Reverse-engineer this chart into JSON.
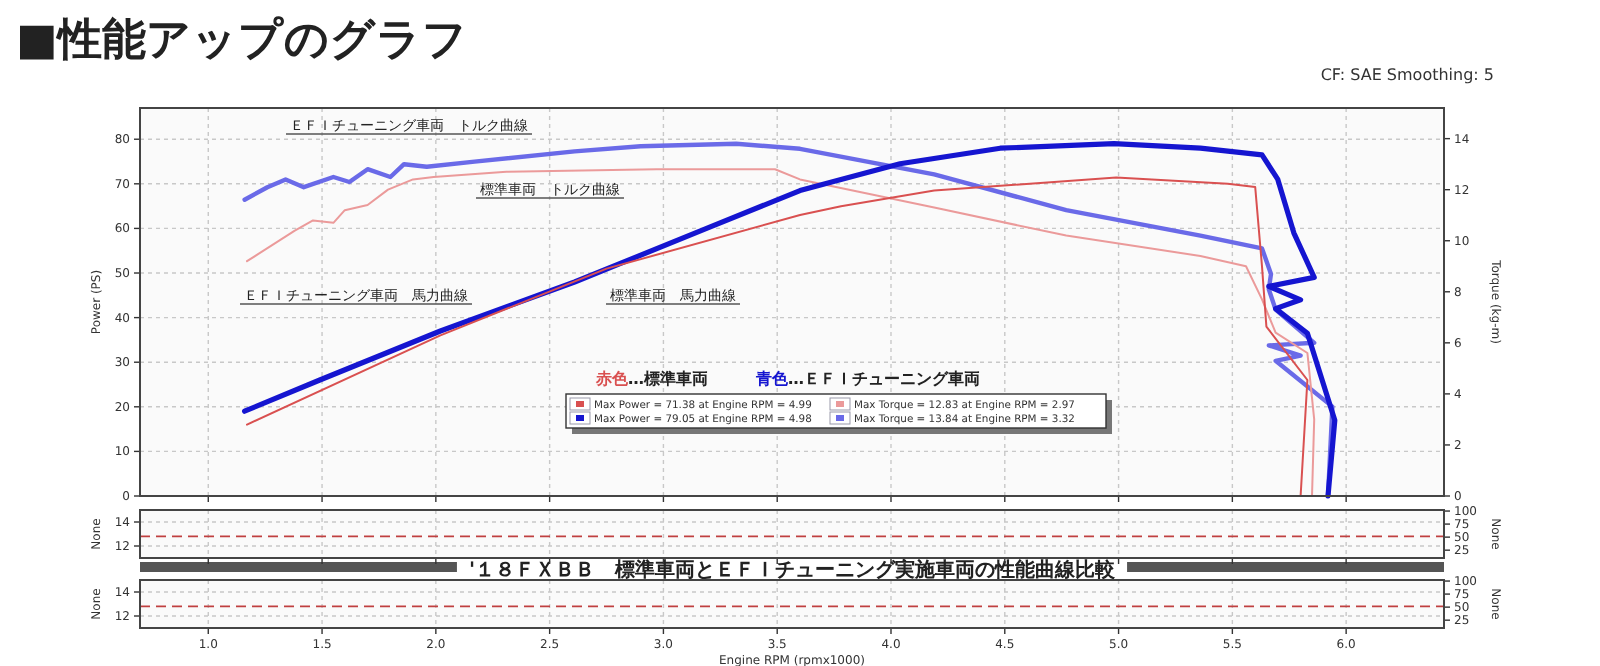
{
  "chart_data": [
    {
      "type": "line",
      "title": "■性能アップのグラフ",
      "ylabel": "Power (PS)",
      "y2label": "Torque (kg-m)",
      "annotations": [
        "CF: SAE Smoothing: 5",
        "赤色…標準車両",
        "青色…ＥＦＩチューニング車両",
        "Max Power = 71.38 at Engine RPM = 4.99",
        "Max Torque = 12.83 at Engine RPM = 2.97",
        "Max Power = 79.05 at Engine RPM = 4.98",
        "Max Torque = 13.84 at Engine RPM = 3.32",
        "'１８ＦＸＢＢ　標準車両とＥＦＩチューニング実施車両の性能曲線比較"
      ],
      "xlim": [
        0.7,
        6.43
      ],
      "xticks": [
        1,
        1.5,
        2,
        2.5,
        3,
        3.5,
        4,
        4.5,
        5,
        5.5,
        6
      ],
      "ylim": [
        0,
        87
      ],
      "yticks": [
        0,
        10,
        20,
        30,
        40,
        50,
        60,
        70,
        80
      ],
      "y2lim": [
        0,
        15.2
      ],
      "y2ticks": [
        0,
        2,
        4,
        6,
        8,
        10,
        12,
        14
      ],
      "grid": true,
      "tick_labels": "y",
      "series": [
        {
          "name": "ＥＦＩチューニング車両　トルク曲線",
          "color": "#6a6ae8",
          "axis": "y2",
          "x": [
            1.16,
            1.26,
            1.34,
            1.42,
            1.55,
            1.62,
            1.7,
            1.8,
            1.86,
            1.96,
            2.17,
            2.61,
            2.9,
            3.32,
            3.6,
            4.19,
            4.77,
            5.36,
            5.63,
            5.67,
            5.66,
            5.69,
            5.86,
            5.66,
            5.8,
            5.69,
            5.94,
            5.92
          ],
          "values": [
            11.6,
            12.1,
            12.4,
            12.1,
            12.5,
            12.3,
            12.8,
            12.5,
            13.0,
            12.9,
            13.1,
            13.5,
            13.7,
            13.8,
            13.6,
            12.6,
            11.2,
            10.2,
            9.7,
            8.7,
            8.1,
            7.3,
            6.0,
            5.9,
            5.5,
            5.3,
            3.5,
            0
          ]
        },
        {
          "name": "標準車両　トルク曲線",
          "color": "#eb9a9a",
          "axis": "y2",
          "x": [
            1.17,
            1.38,
            1.46,
            1.55,
            1.6,
            1.7,
            1.79,
            1.9,
            1.99,
            2.31,
            2.97,
            3.49,
            3.6,
            4.19,
            4.77,
            5.36,
            5.56,
            5.63,
            5.69,
            5.83,
            5.86,
            5.85
          ],
          "values": [
            9.2,
            10.4,
            10.8,
            10.7,
            11.2,
            11.4,
            12.0,
            12.4,
            12.5,
            12.7,
            12.8,
            12.8,
            12.4,
            11.3,
            10.2,
            9.4,
            9.0,
            7.7,
            6.4,
            5.6,
            3.0,
            0
          ]
        },
        {
          "name": "ＥＦＩチューニング車両　馬力曲線",
          "color": "#1515d0",
          "x": [
            1.16,
            1.49,
            2.02,
            2.61,
            3.19,
            3.6,
            3.78,
            4.04,
            4.48,
            4.98,
            5.36,
            5.63,
            5.7,
            5.77,
            5.86,
            5.66,
            5.8,
            5.69,
            5.83,
            5.95,
            5.92
          ],
          "values": [
            19,
            26,
            37,
            48,
            60,
            68.5,
            71,
            74.5,
            78,
            79,
            78,
            76.5,
            71,
            59,
            49,
            47,
            44,
            42,
            36.5,
            17,
            0
          ]
        },
        {
          "name": "標準車両　馬力曲線",
          "color": "#d95050",
          "x": [
            1.17,
            2.02,
            2.75,
            3.6,
            3.78,
            4.19,
            4.99,
            5.48,
            5.6,
            5.63,
            5.65,
            5.83,
            5.8
          ],
          "values": [
            16,
            36,
            51,
            63,
            65,
            68.5,
            71.4,
            70,
            69.3,
            51.5,
            38,
            26,
            0
          ]
        }
      ]
    },
    {
      "type": "line",
      "ylabel": "None",
      "y2label": "None",
      "xlim": [
        0.7,
        6.43
      ],
      "xticks": [
        1,
        1.5,
        2,
        2.5,
        3,
        3.5,
        4,
        4.5,
        5,
        5.5,
        6
      ],
      "ylim": [
        11,
        15
      ],
      "yticks": [
        12,
        14
      ],
      "y2lim": [
        10,
        102
      ],
      "y2ticks": [
        25,
        50,
        75,
        100
      ],
      "grid": true,
      "tick_labels": "y",
      "ref_lines": [
        {
          "axis": "y",
          "value": 12.8,
          "color": "#c04040",
          "line_style": "dashed"
        }
      ]
    },
    {
      "type": "line",
      "xlabel": "Engine RPM (rpmx1000)",
      "ylabel": "None",
      "y2label": "None",
      "xlim": [
        0.7,
        6.43
      ],
      "xticks": [
        {
          "value": 1,
          "label": "1.0"
        },
        1.5,
        {
          "value": 2,
          "label": "2.0"
        },
        2.5,
        {
          "value": 3,
          "label": "3.0"
        },
        3.5,
        {
          "value": 4,
          "label": "4.0"
        },
        4.5,
        {
          "value": 5,
          "label": "5.0"
        },
        5.5,
        {
          "value": 6,
          "label": "6.0"
        }
      ],
      "ylim": [
        11,
        15
      ],
      "yticks": [
        12,
        14
      ],
      "y2lim": [
        10,
        102
      ],
      "y2ticks": [
        25,
        50,
        75,
        100
      ],
      "grid": true,
      "ref_lines": [
        {
          "axis": "y",
          "value": 12.8,
          "color": "#c04040",
          "line_style": "dashed"
        }
      ]
    }
  ]
}
